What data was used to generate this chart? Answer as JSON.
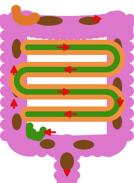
{
  "bg": "#ffffff",
  "pink": "#DD77CC",
  "orange": "#F09040",
  "green": "#3A9010",
  "brown": "#7A4818",
  "red": "#DD1111",
  "app_color": "#E07828",
  "fig_w": 1.92,
  "fig_h": 2.63,
  "dpi": 100,
  "colon_r": 15,
  "si_outer_r": 11,
  "si_inner_r": 7,
  "si_green_r": 4
}
